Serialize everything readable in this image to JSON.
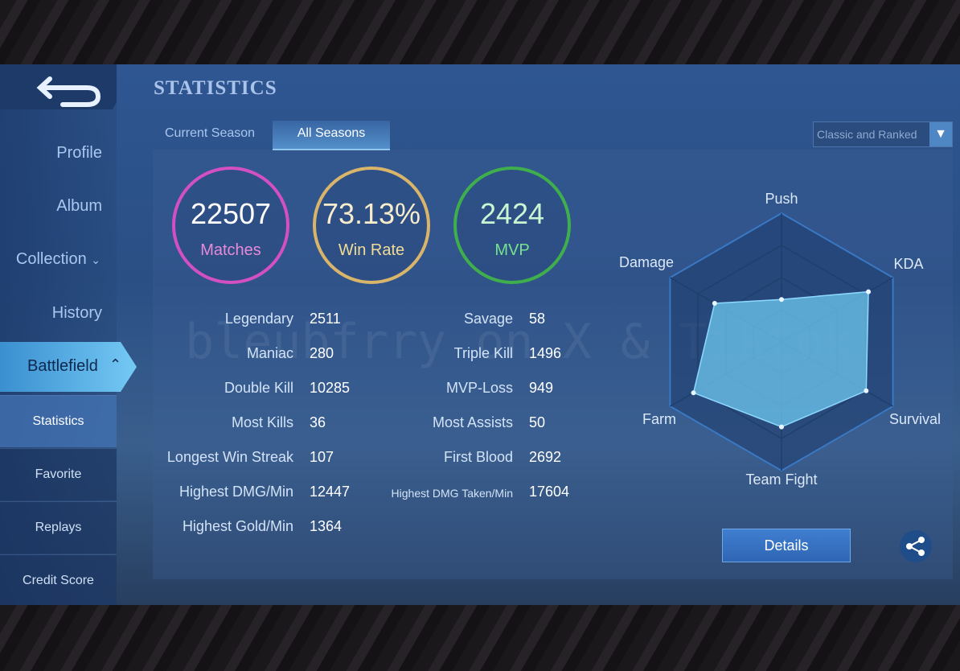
{
  "header": {
    "title": "STATISTICS"
  },
  "sidebar": {
    "items": [
      "Profile",
      "Album",
      "Collection",
      "History",
      "Battlefield"
    ],
    "subitems": [
      "Statistics",
      "Favorite",
      "Replays",
      "Credit Score"
    ]
  },
  "tabs": [
    "Current Season",
    "All Seasons"
  ],
  "filter": "Classic and Ranked",
  "summary": [
    {
      "value": 22507,
      "label": "Matches"
    },
    {
      "value": "73.13%",
      "label": "Win Rate"
    },
    {
      "value": 2424,
      "label": "MVP"
    }
  ],
  "stats": {
    "left": [
      {
        "label": "Legendary",
        "value": 2511
      },
      {
        "label": "Maniac",
        "value": 280
      },
      {
        "label": "Double Kill",
        "value": 10285
      },
      {
        "label": "Most Kills",
        "value": 36
      },
      {
        "label": "Longest Win Streak",
        "value": 107
      },
      {
        "label": "Highest DMG/Min",
        "value": 12447
      },
      {
        "label": "Highest Gold/Min",
        "value": 1364
      }
    ],
    "right": [
      {
        "label": "Savage",
        "value": 58
      },
      {
        "label": "Triple Kill",
        "value": 1496
      },
      {
        "label": "MVP-Loss",
        "value": 949
      },
      {
        "label": "Most Assists",
        "value": 50
      },
      {
        "label": "First Blood",
        "value": 2692
      },
      {
        "label": "Highest DMG Taken/Min",
        "value": 17604
      }
    ]
  },
  "radar": {
    "axes": [
      "Push",
      "KDA",
      "Survival",
      "Team Fight",
      "Farm",
      "Damage"
    ],
    "values": [
      33,
      78,
      76,
      66,
      79,
      60
    ],
    "rlim": [
      0,
      100
    ]
  },
  "details_button": "Details",
  "watermark": "bleubfrry on X & Tiktok"
}
